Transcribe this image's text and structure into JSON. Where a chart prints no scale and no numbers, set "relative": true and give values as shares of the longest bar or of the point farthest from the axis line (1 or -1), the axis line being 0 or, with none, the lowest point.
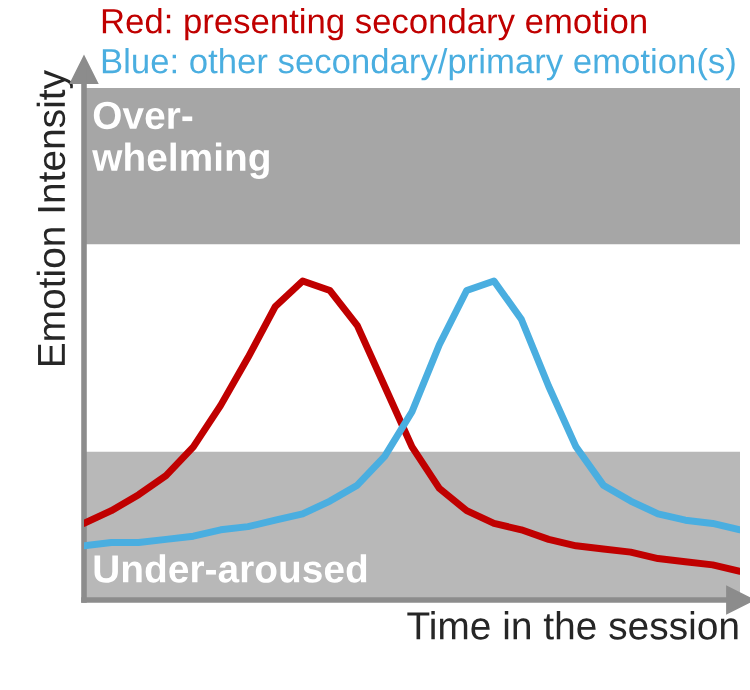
{
  "chart_data": {
    "type": "line",
    "relative": true,
    "title": "Red: presenting secondary emotion",
    "subtitle": "Blue: other secondary/primary emotion(s)",
    "xlabel": "Time in the session",
    "ylabel": "Emotion Intensity",
    "legend": false,
    "marker": "none",
    "line_style": "solid",
    "categories": [
      null,
      null,
      null,
      null,
      null,
      null,
      null,
      null,
      null,
      null,
      null,
      null,
      null,
      null,
      null,
      null,
      null,
      null,
      null,
      null,
      null,
      null,
      null,
      null,
      null
    ],
    "series": [
      {
        "color": "#c00000",
        "values": [
          0.24,
          0.28,
          0.33,
          0.39,
          0.48,
          0.61,
          0.76,
          0.92,
          1.0,
          0.97,
          0.86,
          0.67,
          0.48,
          0.35,
          0.28,
          0.24,
          0.22,
          0.19,
          0.17,
          0.16,
          0.15,
          0.13,
          0.12,
          0.11,
          0.09
        ]
      },
      {
        "color": "#4aaee0",
        "values": [
          0.17,
          0.18,
          0.18,
          0.19,
          0.2,
          0.22,
          0.23,
          0.25,
          0.27,
          0.31,
          0.36,
          0.45,
          0.59,
          0.8,
          0.97,
          1.0,
          0.88,
          0.67,
          0.48,
          0.36,
          0.31,
          0.27,
          0.25,
          0.24,
          0.22
        ]
      }
    ],
    "bands": [
      {
        "axis": "y",
        "from": 1.115,
        "to": 1.605,
        "label": "Over-\nwhelming",
        "color": "#a6a6a6"
      },
      {
        "axis": "y",
        "from": 0,
        "to": 0.465,
        "label": "Under-aroused",
        "color": "#b8b8b8"
      }
    ]
  }
}
